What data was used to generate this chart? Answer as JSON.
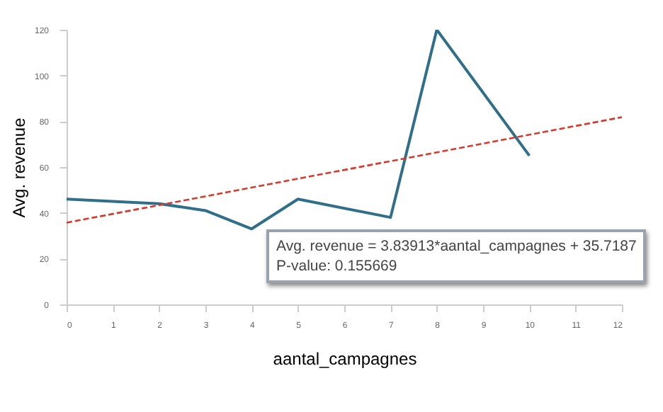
{
  "chart_data": {
    "type": "line",
    "xlabel": "aantal_campagnes",
    "ylabel": "Avg. revenue",
    "annotations": [
      "Avg. revenue = 3.83913*aantal_campagnes + 35.7187",
      "P-value: 0.155669"
    ],
    "x": [
      0,
      2,
      3,
      4,
      5,
      7,
      8,
      10
    ],
    "series": [
      {
        "color": "#2f6f8a",
        "values": [
          46,
          44,
          41,
          33,
          46,
          38,
          120,
          65
        ]
      },
      {
        "type": "line",
        "color": "#d9392b",
        "line_style": "dashed",
        "x": [
          0,
          12
        ],
        "values": [
          35.7,
          81.8
        ]
      }
    ],
    "xlim": [
      0,
      12
    ],
    "xticks": [
      0,
      1,
      2,
      3,
      4,
      5,
      6,
      7,
      8,
      9,
      10,
      11,
      12
    ],
    "ylim": [
      0,
      120
    ],
    "yticks": [
      0,
      20,
      40,
      60,
      80,
      100,
      120
    ],
    "grid": false,
    "marker": "none"
  }
}
